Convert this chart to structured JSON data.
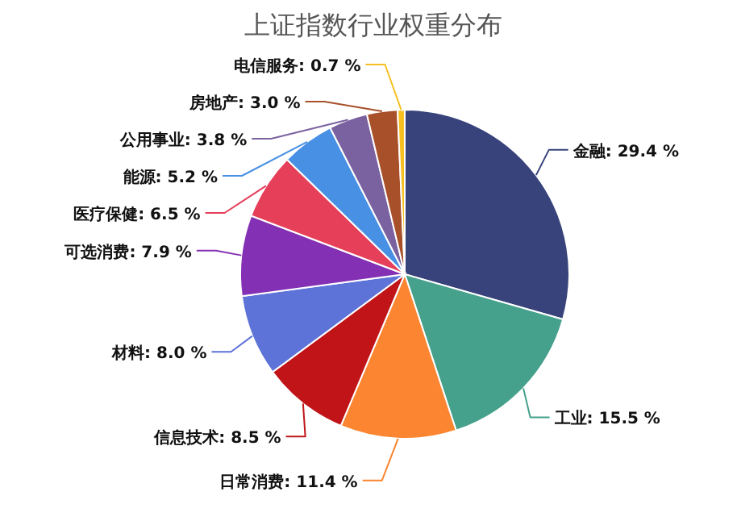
{
  "chart_data": {
    "type": "pie",
    "title": "上证指数行业权重分布",
    "categories": [
      "金融",
      "工业",
      "日常消费",
      "信息技术",
      "材料",
      "可选消费",
      "医疗保健",
      "能源",
      "公用事业",
      "房地产",
      "电信服务"
    ],
    "values": [
      29.4,
      15.5,
      11.4,
      8.5,
      8.0,
      7.9,
      6.5,
      5.2,
      3.8,
      3.0,
      0.7
    ],
    "value_labels": [
      "29.4 %",
      "15.5 %",
      "11.4 %",
      "8.5 %",
      "8.0 %",
      "7.9 %",
      "6.5 %",
      "5.2 %",
      "3.8 %",
      "3.0 %",
      "0.7 %"
    ],
    "colors": [
      "#37437a",
      "#45a08c",
      "#fb8530",
      "#c01418",
      "#5e73d8",
      "#8330b4",
      "#e63f5a",
      "#4890e4",
      "#7a62a0",
      "#a8502a",
      "#f6c022"
    ]
  }
}
